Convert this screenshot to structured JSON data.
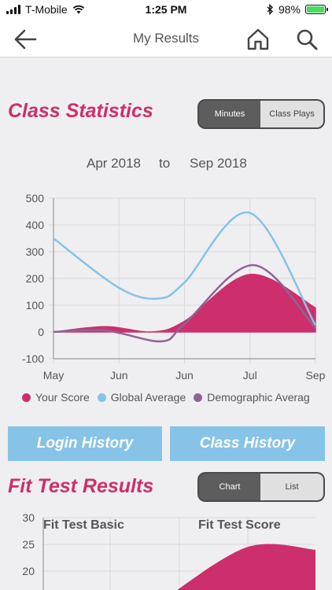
{
  "status": {
    "carrier": "T-Mobile",
    "time": "1:25 PM",
    "battery": "98%",
    "battery_level": 0.98
  },
  "nav": {
    "title": "My Results",
    "icons": [
      "back-arrow-icon",
      "home-icon",
      "search-icon"
    ]
  },
  "class_stats": {
    "title": "Class Statistics",
    "toggle": {
      "active": "Minutes",
      "inactive": "Class Plays"
    },
    "date_from": "Apr 2018",
    "date_sep": "to",
    "date_to": "Sep 2018"
  },
  "legend": [
    {
      "label": "Your Score",
      "color": "#cd2f6c"
    },
    {
      "label": "Global Average",
      "color": "#86c3e6"
    },
    {
      "label": "Demographic Averag",
      "color": "#8e6592"
    }
  ],
  "buttons": {
    "login_history": "Login History",
    "class_history": "Class History"
  },
  "fit_test": {
    "title": "Fit Test Results",
    "toggle": {
      "active": "Chart",
      "inactive": "List"
    },
    "chart_labels": [
      "Fit Test Basic",
      "Fit Test Score"
    ],
    "y_ticks": [
      "30",
      "25",
      "20"
    ]
  },
  "chart_data": [
    {
      "type": "area",
      "categories": [
        "May",
        "Jun",
        "Jun",
        "Jul",
        "Sep"
      ],
      "ylim": [
        -100,
        500
      ],
      "y_ticks": [
        500,
        400,
        300,
        200,
        100,
        0,
        -100
      ],
      "grid": true,
      "legend_position": "bottom",
      "series": [
        {
          "name": "Your Score",
          "type": "area",
          "color": "#cd2f6c",
          "x": [
            0,
            0.8,
            1.5,
            2.0,
            3.0,
            4.0
          ],
          "values": [
            0,
            20,
            0,
            40,
            215,
            90
          ]
        },
        {
          "name": "Global Average",
          "type": "line",
          "color": "#86c3e6",
          "x": [
            0,
            1.0,
            1.6,
            2.0,
            3.0,
            4.0
          ],
          "values": [
            350,
            165,
            125,
            185,
            445,
            25
          ]
        },
        {
          "name": "Demographic Averag",
          "type": "line",
          "color": "#8e6592",
          "x": [
            0,
            0.8,
            1.65,
            2.0,
            3.05,
            4.0
          ],
          "values": [
            0,
            5,
            -35,
            30,
            250,
            15
          ]
        }
      ]
    },
    {
      "type": "area",
      "ylim": [
        15,
        30
      ],
      "y_ticks": [
        30,
        25,
        20
      ],
      "series": [
        {
          "name": "Fit Test Score",
          "type": "area",
          "color": "#cd2f6c",
          "x": [
            0.45,
            0.75,
            1.0
          ],
          "values": [
            15,
            24.5,
            24
          ]
        }
      ]
    }
  ]
}
